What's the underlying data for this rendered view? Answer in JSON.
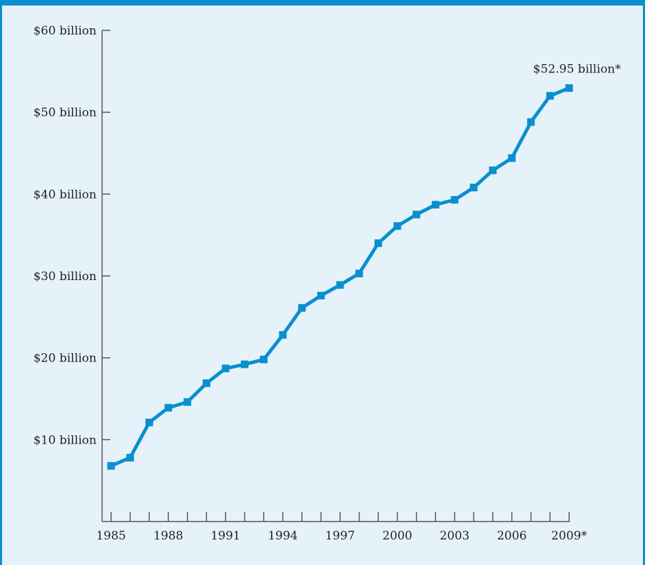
{
  "chart_data": {
    "type": "line",
    "title": "",
    "xlabel": "",
    "ylabel": "",
    "x": [
      1985,
      1986,
      1987,
      1988,
      1989,
      1990,
      1991,
      1992,
      1993,
      1994,
      1995,
      1996,
      1997,
      1998,
      1999,
      2000,
      2001,
      2002,
      2003,
      2004,
      2005,
      2006,
      2007,
      2008,
      2009
    ],
    "series": [
      {
        "values": [
          6.8,
          7.8,
          12.1,
          13.9,
          14.6,
          16.9,
          18.7,
          19.2,
          19.8,
          22.8,
          26.1,
          27.6,
          28.9,
          30.3,
          34.0,
          36.1,
          37.5,
          38.7,
          39.3,
          40.8,
          42.9,
          44.4,
          48.8,
          52.0,
          52.95
        ]
      }
    ],
    "ylim": [
      0,
      60
    ],
    "xlim": [
      1985,
      2009
    ],
    "yticks": [
      {
        "value": 10,
        "label": "$10 billion"
      },
      {
        "value": 20,
        "label": "$20 billion"
      },
      {
        "value": 30,
        "label": "$30 billion"
      },
      {
        "value": 40,
        "label": "$40 billion"
      },
      {
        "value": 50,
        "label": "$50 billion"
      },
      {
        "value": 60,
        "label": "$60 billion"
      }
    ],
    "xticklabels": [
      {
        "value": 1985,
        "label": "1985"
      },
      {
        "value": 1988,
        "label": "1988"
      },
      {
        "value": 1991,
        "label": "1991"
      },
      {
        "value": 1994,
        "label": "1994"
      },
      {
        "value": 1997,
        "label": "1997"
      },
      {
        "value": 2000,
        "label": "2000"
      },
      {
        "value": 2003,
        "label": "2003"
      },
      {
        "value": 2006,
        "label": "2006"
      },
      {
        "value": 2009,
        "label": "2009*"
      }
    ],
    "annotation": {
      "text": "$52.95 billion*",
      "x": 2009,
      "y": 52.95
    },
    "grid": false,
    "colors": {
      "line": "#0a8fcf",
      "frame": "#0a8fcf",
      "background": "#e6f2f9",
      "axis": "#555555"
    }
  }
}
